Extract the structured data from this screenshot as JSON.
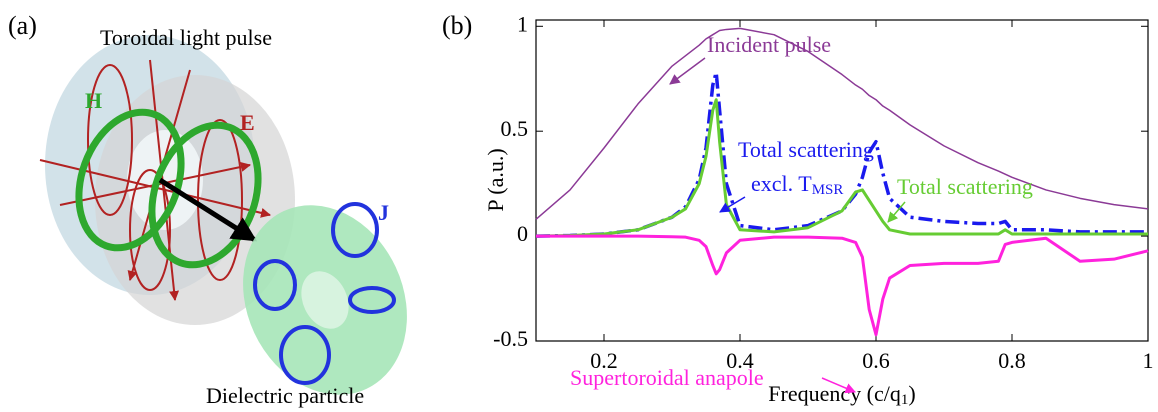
{
  "illustration": {
    "panel_label": "(a)",
    "title": "Toroidal light pulse",
    "h_label": "H",
    "e_label": "E",
    "j_label": "J",
    "caption": "Dielectric particle"
  },
  "chart_data": {
    "type": "line",
    "panel_label": "(b)",
    "ylabel": "P (a.u.)",
    "xlabel": "Frequency (c/q",
    "xlabel_sub": "1",
    "xlabel_end": ")",
    "xlim": [
      0.1,
      1
    ],
    "ylim": [
      -0.5,
      1.03
    ],
    "xticks": [
      0.2,
      0.4,
      0.6,
      0.8,
      1
    ],
    "yticks": [
      -0.5,
      0,
      0.5,
      1
    ],
    "x": [
      0.1,
      0.15,
      0.2,
      0.25,
      0.3,
      0.32,
      0.34,
      0.35,
      0.36,
      0.365,
      0.37,
      0.38,
      0.4,
      0.45,
      0.5,
      0.55,
      0.57,
      0.58,
      0.59,
      0.6,
      0.61,
      0.62,
      0.65,
      0.7,
      0.75,
      0.78,
      0.79,
      0.8,
      0.85,
      0.9,
      0.95,
      1.0
    ],
    "series": [
      {
        "name": "Incident pulse",
        "color": "#8b3a96",
        "width": 1.5,
        "dashed": false,
        "values": [
          0.08,
          0.22,
          0.42,
          0.63,
          0.81,
          0.86,
          0.91,
          0.94,
          0.96,
          0.97,
          0.98,
          0.985,
          0.99,
          0.96,
          0.88,
          0.77,
          0.72,
          0.7,
          0.67,
          0.65,
          0.62,
          0.6,
          0.53,
          0.43,
          0.35,
          0.31,
          0.295,
          0.28,
          0.22,
          0.18,
          0.15,
          0.13
        ]
      },
      {
        "name": "Total scattering",
        "name_line2": "excl. T",
        "name_sub": "MSR",
        "color": "#1a1aee",
        "width": 3.5,
        "dashed": true,
        "values": [
          0.0,
          0.003,
          0.01,
          0.03,
          0.09,
          0.14,
          0.27,
          0.42,
          0.72,
          0.78,
          0.6,
          0.25,
          0.05,
          0.03,
          0.05,
          0.12,
          0.2,
          0.28,
          0.4,
          0.45,
          0.3,
          0.18,
          0.09,
          0.07,
          0.06,
          0.06,
          0.07,
          0.03,
          0.03,
          0.02,
          0.02,
          0.02
        ]
      },
      {
        "name": "Total scattering",
        "color": "#66cc33",
        "width": 3,
        "dashed": false,
        "values": [
          0.0,
          0.003,
          0.01,
          0.03,
          0.09,
          0.13,
          0.25,
          0.38,
          0.6,
          0.65,
          0.45,
          0.15,
          0.03,
          0.02,
          0.04,
          0.12,
          0.21,
          0.22,
          0.17,
          0.12,
          0.07,
          0.03,
          0.01,
          0.01,
          0.01,
          0.01,
          0.03,
          0.01,
          0.01,
          0.01,
          0.01,
          0.01
        ]
      },
      {
        "name": "Supertoroidal anapole",
        "color": "#ff22dd",
        "width": 3,
        "dashed": false,
        "values": [
          0,
          0,
          0,
          0,
          -0.003,
          -0.005,
          -0.02,
          -0.05,
          -0.14,
          -0.18,
          -0.16,
          -0.08,
          -0.02,
          -0.005,
          -0.005,
          -0.01,
          -0.03,
          -0.1,
          -0.35,
          -0.47,
          -0.3,
          -0.2,
          -0.14,
          -0.13,
          -0.13,
          -0.12,
          -0.04,
          -0.03,
          -0.01,
          -0.12,
          -0.11,
          -0.07
        ]
      }
    ]
  }
}
